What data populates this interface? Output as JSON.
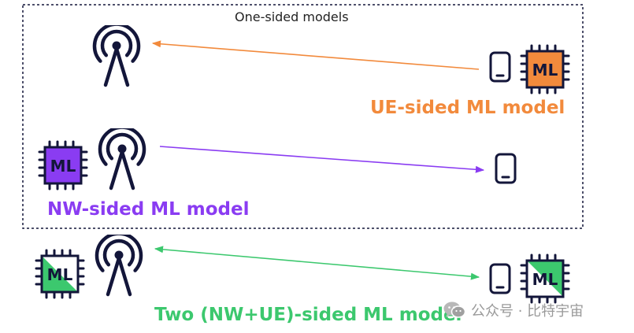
{
  "box_title": "One-sided models",
  "chip_label": "ML",
  "labels": {
    "ue_sided": "UE-sided ML model",
    "nw_sided": "NW-sided ML model",
    "two_sided": "Two (NW+UE)-sided ML model"
  },
  "watermark": "公众号 · 比特宇宙",
  "colors": {
    "ue": "#f28a3c",
    "nw": "#8a3cf2",
    "two": "#3cc86e",
    "ink": "#13163a",
    "border": "#13163a"
  },
  "icons": [
    "antenna-tower-icon",
    "phone-icon",
    "ml-chip-icon",
    "wechat-icon"
  ]
}
